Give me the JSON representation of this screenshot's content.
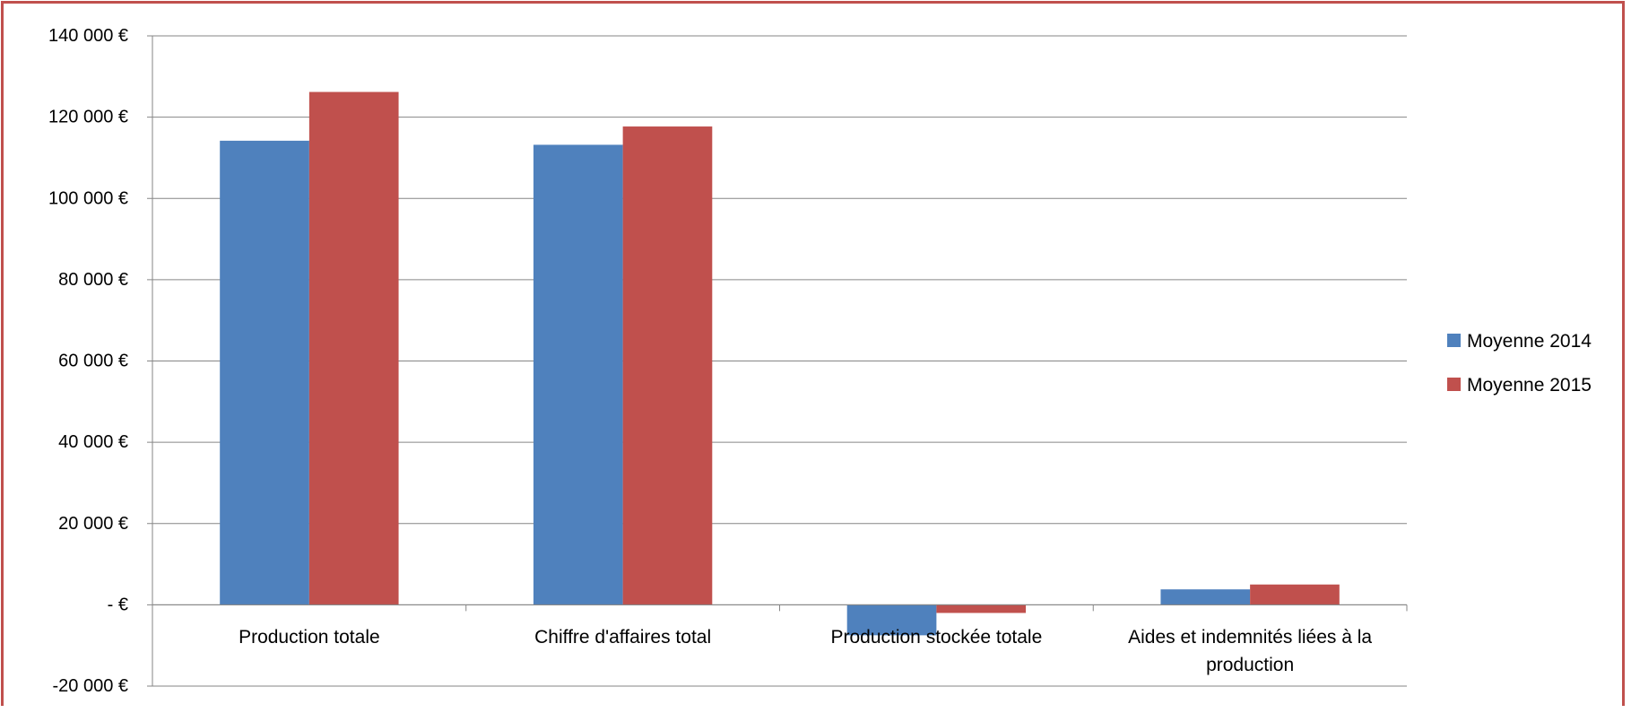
{
  "chart_data": {
    "type": "bar",
    "categories": [
      [
        "Production totale"
      ],
      [
        "Chiffre d'affaires total"
      ],
      [
        "Production stockée totale"
      ],
      [
        "Aides et indemnités liées à la",
        "production"
      ]
    ],
    "series": [
      {
        "name": "Moyenne 2014",
        "color": "#4f81bd",
        "values": [
          114200,
          113200,
          -7500,
          3800
        ]
      },
      {
        "name": "Moyenne 2015",
        "color": "#c0504d",
        "values": [
          126200,
          117700,
          -2000,
          5000
        ]
      }
    ],
    "ylim": [
      -20000,
      140000
    ],
    "yticks": [
      {
        "value": 140000,
        "label": "140 000 €"
      },
      {
        "value": 120000,
        "label": "120 000 €"
      },
      {
        "value": 100000,
        "label": "100 000 €"
      },
      {
        "value": 80000,
        "label": "80 000 €"
      },
      {
        "value": 60000,
        "label": "60 000 €"
      },
      {
        "value": 40000,
        "label": "40 000 €"
      },
      {
        "value": 20000,
        "label": "20 000 €"
      },
      {
        "value": 0,
        "label": "-   €"
      },
      {
        "value": -20000,
        "label": "-20 000 €"
      }
    ],
    "grid": true,
    "legend_position": "right",
    "title": "",
    "xlabel": "",
    "ylabel": ""
  },
  "colors": {
    "frame": "#c0504d",
    "gridline": "#868686",
    "axis": "#868686"
  }
}
